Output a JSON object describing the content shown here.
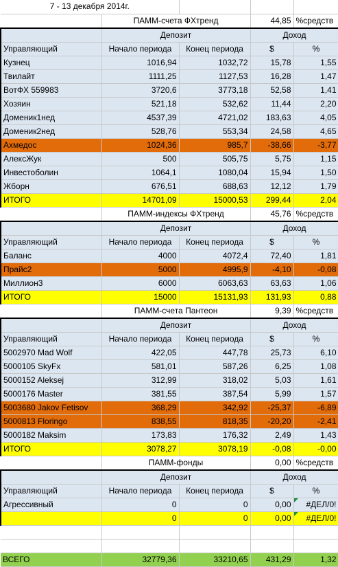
{
  "title": "7 - 13 декабря 2014г.",
  "col_headers": {
    "manager": "Управляющий",
    "deposit": "Депозит",
    "income": "Доход",
    "start": "Начало периода",
    "end": "Конец периода",
    "usd": "$",
    "pct": "%"
  },
  "sections": [
    {
      "name": "ПАММ-счета ФХтренд",
      "share": "44,85",
      "share_label": "%средств",
      "rows": [
        {
          "manager": "Кузнец",
          "start": "1016,94",
          "end": "1032,72",
          "usd": "15,78",
          "pct": "1,55",
          "style": "blue"
        },
        {
          "manager": "Твилайт",
          "start": "1111,25",
          "end": "1127,53",
          "usd": "16,28",
          "pct": "1,47",
          "style": "blue"
        },
        {
          "manager": "ВотФХ 559983",
          "start": "3720,6",
          "end": "3773,18",
          "usd": "52,58",
          "pct": "1,41",
          "style": "blue"
        },
        {
          "manager": "Хозяин",
          "start": "521,18",
          "end": "532,62",
          "usd": "11,44",
          "pct": "2,20",
          "style": "blue"
        },
        {
          "manager": "Доменик1нед",
          "start": "4537,39",
          "end": "4721,02",
          "usd": "183,63",
          "pct": "4,05",
          "style": "blue"
        },
        {
          "manager": "Доменик2нед",
          "start": "528,76",
          "end": "553,34",
          "usd": "24,58",
          "pct": "4,65",
          "style": "blue"
        },
        {
          "manager": "Ахмедос",
          "start": "1024,36",
          "end": "985,7",
          "usd": "-38,66",
          "pct": "-3,77",
          "style": "orange"
        },
        {
          "manager": "АлексЖук",
          "start": "500",
          "end": "505,75",
          "usd": "5,75",
          "pct": "1,15",
          "style": "blue"
        },
        {
          "manager": "Инвестоболин",
          "start": "1064,1",
          "end": "1080,04",
          "usd": "15,94",
          "pct": "1,50",
          "style": "blue"
        },
        {
          "manager": "Жборн",
          "start": "676,51",
          "end": "688,63",
          "usd": "12,12",
          "pct": "1,79",
          "style": "blue"
        }
      ],
      "total": {
        "manager": "ИТОГО",
        "start": "14701,09",
        "end": "15000,53",
        "usd": "299,44",
        "pct": "2,04"
      }
    },
    {
      "name": "ПАММ-индексы ФХтренд",
      "share": "45,76",
      "share_label": "%средств",
      "rows": [
        {
          "manager": "Баланс",
          "start": "4000",
          "end": "4072,4",
          "usd": "72,40",
          "pct": "1,81",
          "style": "blue"
        },
        {
          "manager": "Прайс2",
          "start": "5000",
          "end": "4995,9",
          "usd": "-4,10",
          "pct": "-0,08",
          "style": "orange"
        },
        {
          "manager": "Миллион3",
          "start": "6000",
          "end": "6063,63",
          "usd": "63,63",
          "pct": "1,06",
          "style": "blue"
        }
      ],
      "total": {
        "manager": "ИТОГО",
        "start": "15000",
        "end": "15131,93",
        "usd": "131,93",
        "pct": "0,88"
      }
    },
    {
      "name": "ПАММ-счета Пантеон",
      "share": "9,39",
      "share_label": "%средств",
      "rows": [
        {
          "manager": "5002970 Mad Wolf",
          "start": "422,05",
          "end": "447,78",
          "usd": "25,73",
          "pct": "6,10",
          "style": "blue"
        },
        {
          "manager": "5000105 SkyFx",
          "start": "581,01",
          "end": "587,26",
          "usd": "6,25",
          "pct": "1,08",
          "style": "blue"
        },
        {
          "manager": "5000152 Aleksej",
          "start": "312,99",
          "end": "318,02",
          "usd": "5,03",
          "pct": "1,61",
          "style": "blue"
        },
        {
          "manager": "5000176 Master",
          "start": "381,55",
          "end": "387,54",
          "usd": "5,99",
          "pct": "1,57",
          "style": "blue"
        },
        {
          "manager": "5003680 Jakov Fetisov",
          "start": "368,29",
          "end": "342,92",
          "usd": "-25,37",
          "pct": "-6,89",
          "style": "orange"
        },
        {
          "manager": "5000813 Floringo",
          "start": "838,55",
          "end": "818,35",
          "usd": "-20,20",
          "pct": "-2,41",
          "style": "orange"
        },
        {
          "manager": "5000182 Maksim",
          "start": "173,83",
          "end": "176,32",
          "usd": "2,49",
          "pct": "1,43",
          "style": "blue"
        }
      ],
      "total": {
        "manager": "ИТОГО",
        "start": "3078,27",
        "end": "3078,19",
        "usd": "-0,08",
        "pct": "-0,00"
      }
    },
    {
      "name": "ПАММ-фонды",
      "share": "0,00",
      "share_label": "%средств",
      "rows": [
        {
          "manager": "Агрессивный",
          "start": "0",
          "end": "0",
          "usd": "0,00",
          "pct": "#ДЕЛ/0!",
          "style": "blue"
        }
      ],
      "total": {
        "manager": "",
        "start": "0",
        "end": "0",
        "usd": "0,00",
        "pct": "#ДЕЛ/0!"
      }
    }
  ],
  "grand_total": {
    "manager": "ВСЕГО",
    "start": "32779,36",
    "end": "33210,65",
    "usd": "431,29",
    "pct": "1,32"
  }
}
